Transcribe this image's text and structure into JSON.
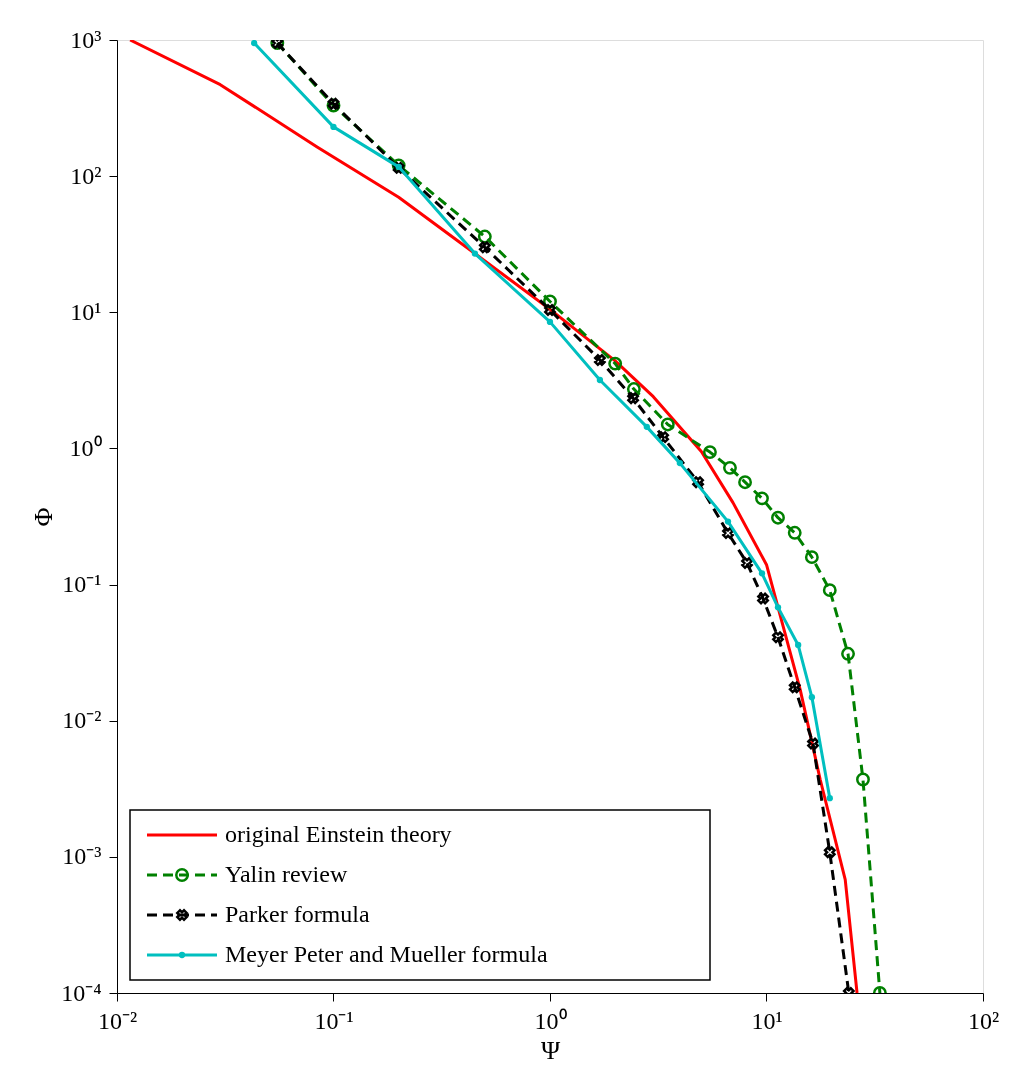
{
  "chart_data": {
    "type": "line",
    "xlabel": "Ψ",
    "ylabel": "Φ",
    "log": "xy",
    "grid": false,
    "legend": "bottom left",
    "xlim": [
      0.01,
      100
    ],
    "ylim": [
      0.0001,
      1000
    ],
    "xticks": [
      {
        "value": 0.01,
        "label": "10⁻²"
      },
      {
        "value": 0.1,
        "label": "10⁻¹"
      },
      {
        "value": 1,
        "label": "10⁰"
      },
      {
        "value": 10,
        "label": "10¹"
      },
      {
        "value": 100,
        "label": "10²"
      }
    ],
    "yticks": [
      {
        "value": 0.0001,
        "label": "10⁻⁴"
      },
      {
        "value": 0.001,
        "label": "10⁻³"
      },
      {
        "value": 0.01,
        "label": "10⁻²"
      },
      {
        "value": 0.1,
        "label": "10⁻¹"
      },
      {
        "value": 1,
        "label": "10⁰"
      },
      {
        "value": 10,
        "label": "10¹"
      },
      {
        "value": 100,
        "label": "10²"
      },
      {
        "value": 1000,
        "label": "10³"
      }
    ],
    "series": [
      {
        "name": "original Einstein theory",
        "color": "#ff0000",
        "line_style": "solid",
        "marker": "none",
        "x": [
          0.0115,
          0.03,
          0.084,
          0.2,
          0.45,
          1,
          2,
          3,
          5,
          7,
          10,
          14.3,
          17.7,
          23.1,
          26.2
        ],
        "values": [
          1000,
          470,
          164,
          70,
          27,
          10.5,
          4.4,
          2.4,
          0.95,
          0.4,
          0.14,
          0.017,
          0.0037,
          0.00068,
          0.0001
        ]
      },
      {
        "name": "Yalin review",
        "color": "#008000",
        "line_style": "dashed",
        "marker": "circle",
        "x": [
          0.055,
          0.1,
          0.2,
          0.5,
          1,
          2,
          2.44,
          3.5,
          5.48,
          6.78,
          7.96,
          9.53,
          11.3,
          13.5,
          16.2,
          19.6,
          23.8,
          27.9,
          33.4
        ],
        "values": [
          950,
          330,
          120,
          36,
          12,
          4.2,
          2.73,
          1.5,
          0.94,
          0.72,
          0.565,
          0.43,
          0.31,
          0.24,
          0.159,
          0.091,
          0.031,
          0.0037,
          0.0001
        ]
      },
      {
        "name": "Parker formula",
        "color": "#000000",
        "line_style": "dashed",
        "marker": "cross",
        "x": [
          0.055,
          0.1,
          0.2,
          0.5,
          1,
          1.7,
          2.42,
          3.33,
          4.83,
          6.64,
          8.13,
          9.64,
          11.3,
          13.5,
          16.4,
          19.6,
          24
        ],
        "values": [
          950,
          340,
          115,
          30,
          10.4,
          4.46,
          2.34,
          1.21,
          0.565,
          0.239,
          0.144,
          0.079,
          0.041,
          0.0176,
          0.0068,
          0.00108,
          0.0001
        ]
      },
      {
        "name": "Meyer Peter and Mueller formula",
        "color": "#00bfbf",
        "line_style": "solid",
        "marker": "circle",
        "x": [
          0.043,
          0.1,
          0.2,
          0.45,
          1,
          1.7,
          2.8,
          3.98,
          6.64,
          9.53,
          11.3,
          14,
          16.2,
          19.6
        ],
        "values": [
          950,
          230,
          117,
          27,
          8.5,
          3.18,
          1.44,
          0.78,
          0.29,
          0.121,
          0.068,
          0.036,
          0.0149,
          0.0027
        ]
      }
    ]
  }
}
